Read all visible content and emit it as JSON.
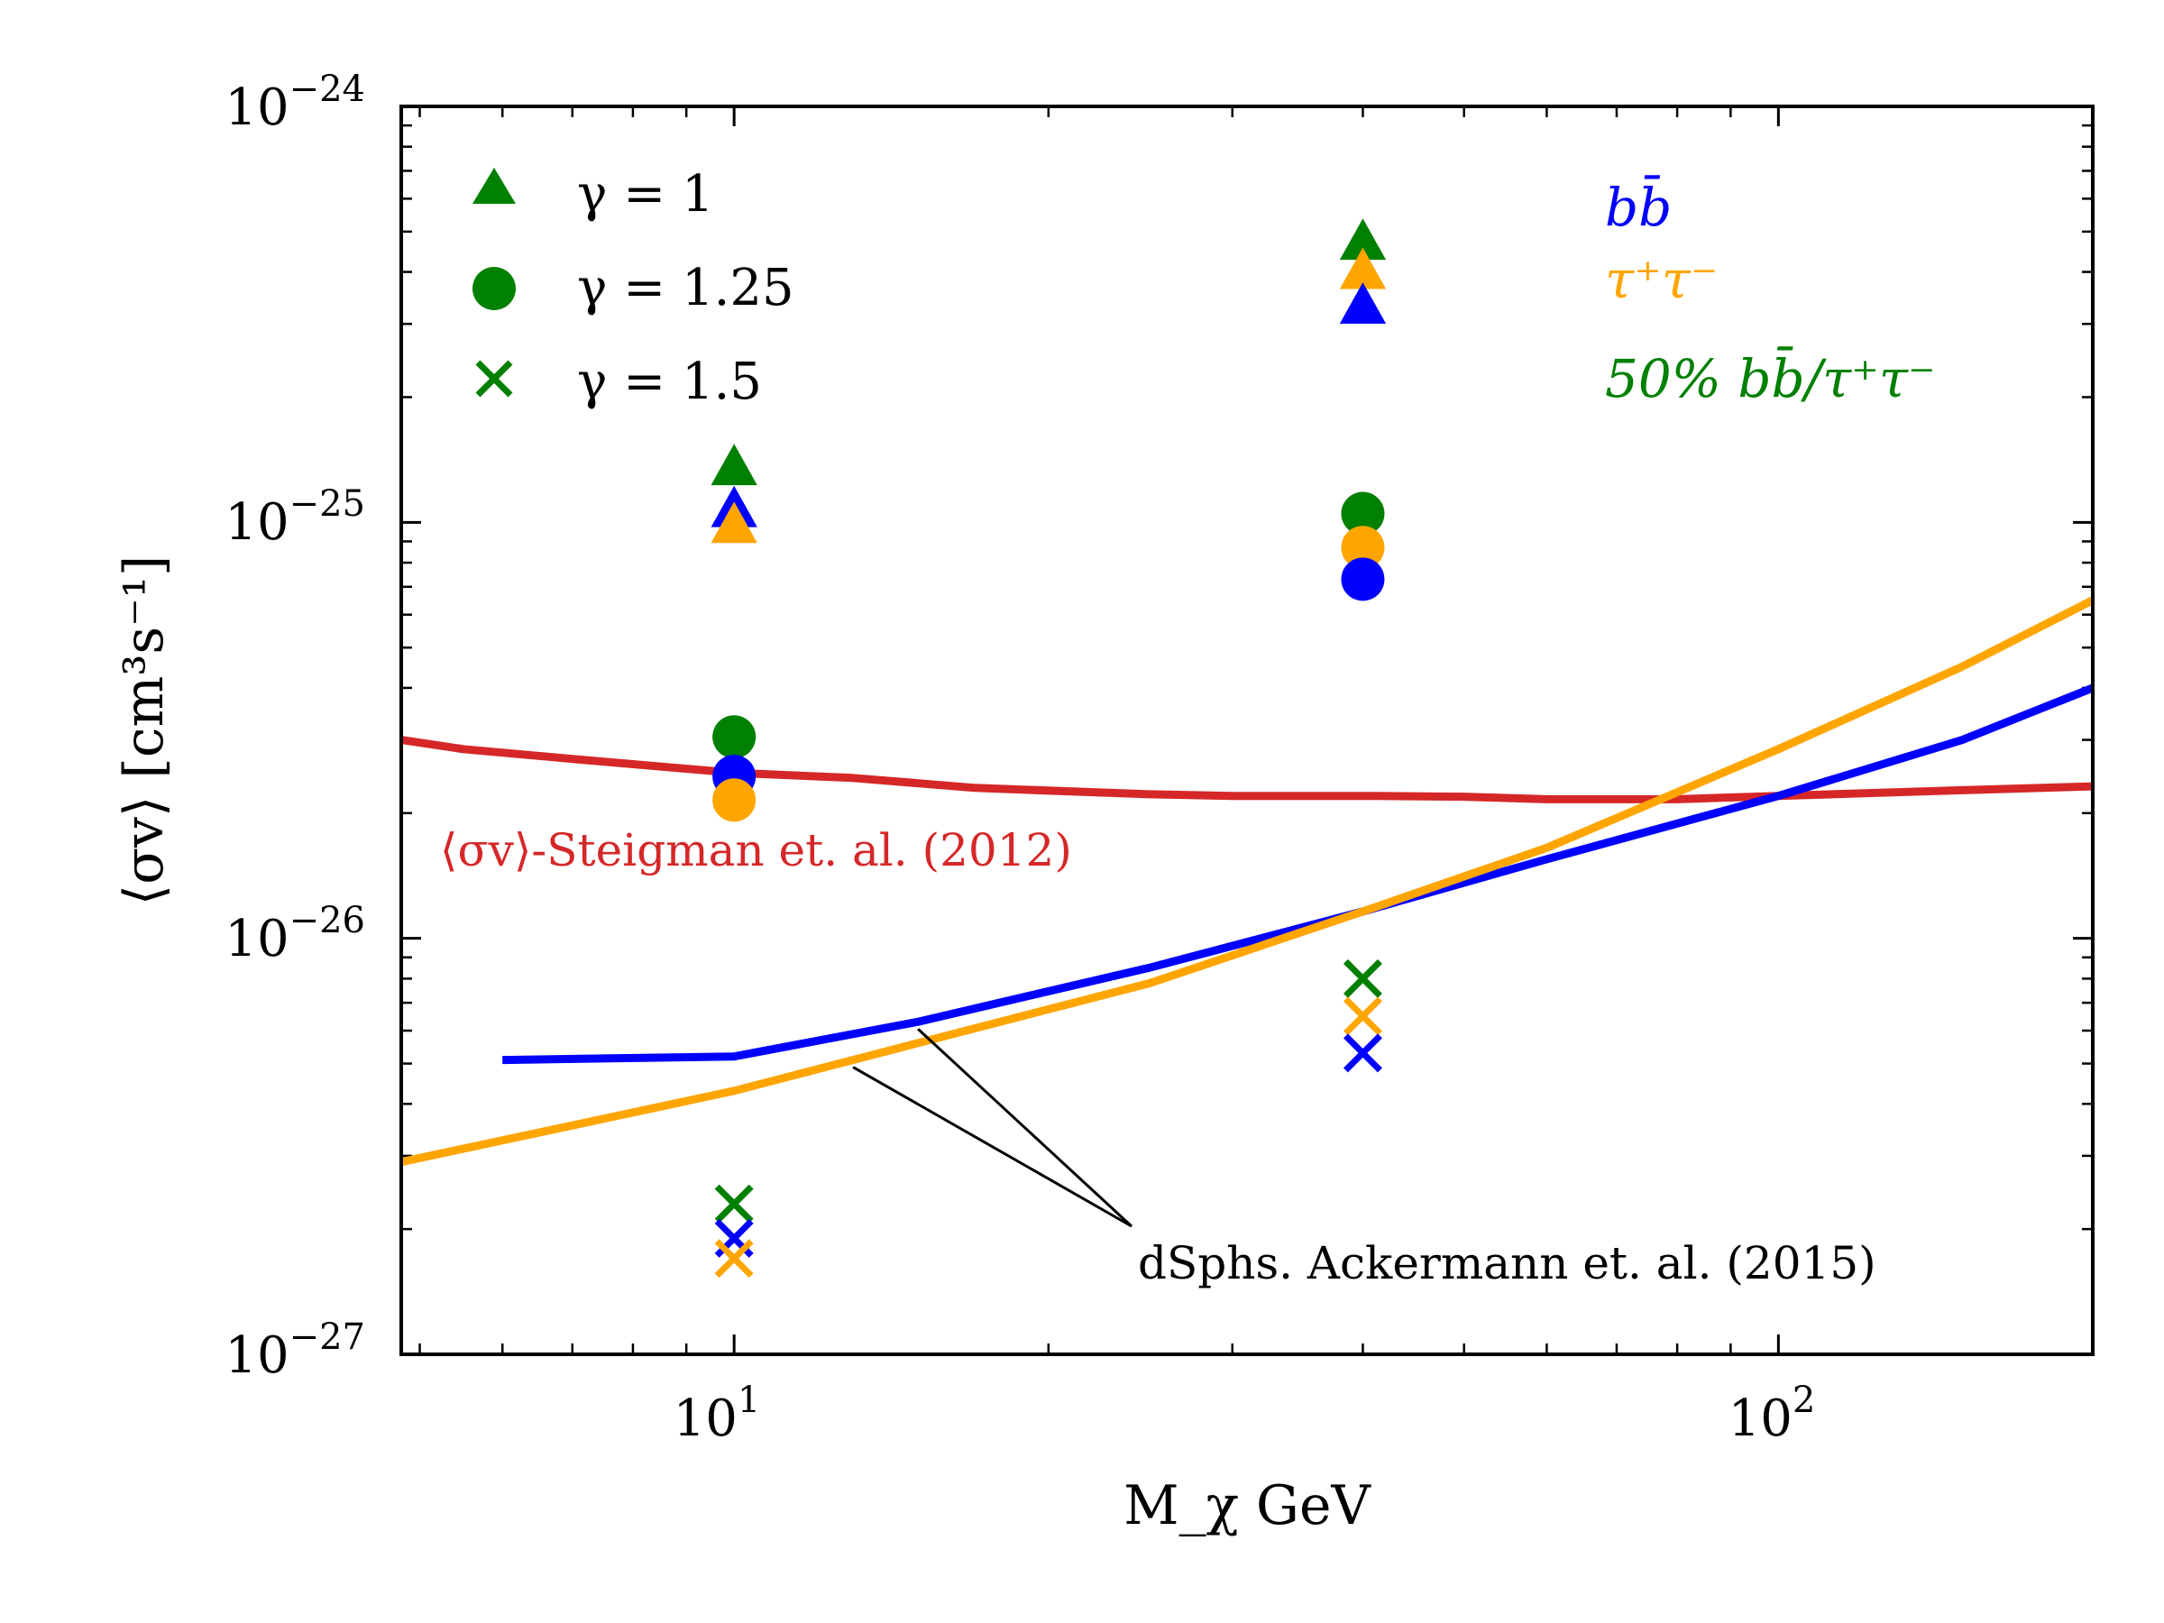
{
  "chart_data": {
    "type": "scatter",
    "title": "",
    "xlabel": "M_χ GeV",
    "ylabel": "⟨σv⟩ [cm³s⁻¹]",
    "xscale": "log",
    "yscale": "log",
    "xlim": [
      4.8,
      200
    ],
    "ylim": [
      1e-27,
      1e-24
    ],
    "x_ticks": [
      {
        "value": 10,
        "base": "10",
        "exp": "1"
      },
      {
        "value": 100,
        "base": "10",
        "exp": "2"
      }
    ],
    "y_ticks": [
      {
        "value": 1e-27,
        "base": "10",
        "exp": "−27"
      },
      {
        "value": 1e-26,
        "base": "10",
        "exp": "−26"
      },
      {
        "value": 1e-25,
        "base": "10",
        "exp": "−25"
      },
      {
        "value": 1e-24,
        "base": "10",
        "exp": "−24"
      }
    ],
    "colors": {
      "bb": "#0000ff",
      "tautau": "#ffa500",
      "mixed": "#008000",
      "steigman": "#d62728",
      "ackermann_pointer": "#000000"
    },
    "legend": [
      {
        "label": "γ = 1",
        "marker": "triangle"
      },
      {
        "label": "γ = 1.25",
        "marker": "circle"
      },
      {
        "label": "γ = 1.5",
        "marker": "x"
      }
    ],
    "channel_labels": [
      {
        "text": "bb̄",
        "color_key": "bb"
      },
      {
        "text": "τ⁺τ⁻",
        "color_key": "tautau"
      },
      {
        "text": "50% bb̄/τ⁺τ⁻",
        "color_key": "mixed"
      }
    ],
    "annotations": {
      "steigman": "⟨σv⟩-Steigman et. al. (2012)",
      "ackermann": "dSphs. Ackermann et. al. (2015)"
    },
    "lines": [
      {
        "name": "Steigman et al. (2012) thermal relic",
        "color_key": "steigman",
        "x": [
          4.8,
          5.5,
          7,
          10,
          13,
          17,
          25,
          30,
          40,
          50,
          60,
          80,
          100,
          150,
          200
        ],
        "y": [
          3e-26,
          2.85e-26,
          2.7e-26,
          2.5e-26,
          2.43e-26,
          2.3e-26,
          2.22e-26,
          2.2e-26,
          2.2e-26,
          2.19e-26,
          2.16e-26,
          2.16e-26,
          2.2e-26,
          2.27e-26,
          2.32e-26
        ]
      },
      {
        "name": "dSphs Ackermann et al. (2015) bb̄",
        "color_key": "bb",
        "x": [
          6,
          10,
          15,
          25,
          40,
          60,
          100,
          150,
          200
        ],
        "y": [
          5.1e-27,
          5.2e-27,
          6.3e-27,
          8.5e-27,
          1.16e-26,
          1.55e-26,
          2.2e-26,
          3e-26,
          4e-26
        ]
      },
      {
        "name": "dSphs Ackermann et al. (2015) τ⁺τ⁻",
        "color_key": "tautau",
        "x": [
          4.8,
          10,
          15,
          25,
          40,
          60,
          100,
          150,
          200
        ],
        "y": [
          2.9e-27,
          4.3e-27,
          5.6e-27,
          7.8e-27,
          1.16e-26,
          1.65e-26,
          2.85e-26,
          4.5e-26,
          6.5e-26
        ]
      }
    ],
    "points": [
      {
        "x": 10,
        "y": 1.35e-25,
        "marker": "triangle",
        "color_key": "mixed"
      },
      {
        "x": 10,
        "y": 1.07e-25,
        "marker": "triangle",
        "color_key": "bb"
      },
      {
        "x": 10,
        "y": 9.8e-26,
        "marker": "triangle",
        "color_key": "tautau"
      },
      {
        "x": 40,
        "y": 4.7e-25,
        "marker": "triangle",
        "color_key": "mixed"
      },
      {
        "x": 40,
        "y": 4e-25,
        "marker": "triangle",
        "color_key": "tautau"
      },
      {
        "x": 40,
        "y": 3.3e-25,
        "marker": "triangle",
        "color_key": "bb"
      },
      {
        "x": 10,
        "y": 3.05e-26,
        "marker": "circle",
        "color_key": "mixed"
      },
      {
        "x": 10,
        "y": 2.45e-26,
        "marker": "circle",
        "color_key": "bb"
      },
      {
        "x": 10,
        "y": 2.15e-26,
        "marker": "circle",
        "color_key": "tautau"
      },
      {
        "x": 40,
        "y": 1.05e-25,
        "marker": "circle",
        "color_key": "mixed"
      },
      {
        "x": 40,
        "y": 8.7e-26,
        "marker": "circle",
        "color_key": "tautau"
      },
      {
        "x": 40,
        "y": 7.3e-26,
        "marker": "circle",
        "color_key": "bb"
      },
      {
        "x": 10,
        "y": 2.3e-27,
        "marker": "x",
        "color_key": "mixed"
      },
      {
        "x": 10,
        "y": 1.9e-27,
        "marker": "x",
        "color_key": "bb"
      },
      {
        "x": 10,
        "y": 1.7e-27,
        "marker": "x",
        "color_key": "tautau"
      },
      {
        "x": 40,
        "y": 8e-27,
        "marker": "x",
        "color_key": "mixed"
      },
      {
        "x": 40,
        "y": 6.5e-27,
        "marker": "x",
        "color_key": "tautau"
      },
      {
        "x": 40,
        "y": 5.3e-27,
        "marker": "x",
        "color_key": "bb"
      }
    ],
    "grid": false,
    "legend_position": "top-left"
  }
}
